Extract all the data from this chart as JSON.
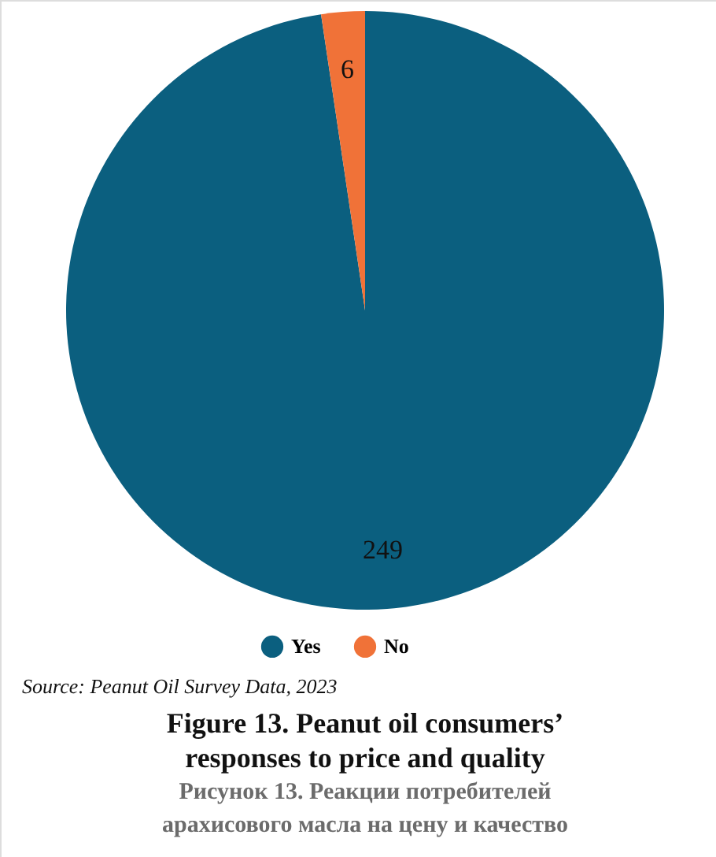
{
  "chart_data": {
    "type": "pie",
    "title": "Figure 13. Peanut oil consumers’ responses to price and quality",
    "subtitle": "Рисунок 13. Реакции потребителей арахисового масла на цену и качество",
    "annotations": [
      "Source: Peanut Oil Survey Data, 2023"
    ],
    "categories": [
      "Yes",
      "No"
    ],
    "values": [
      249,
      6
    ],
    "colors": [
      "#0b5f7f",
      "#f07238"
    ],
    "data_labels": true,
    "legend": "bottom"
  }
}
